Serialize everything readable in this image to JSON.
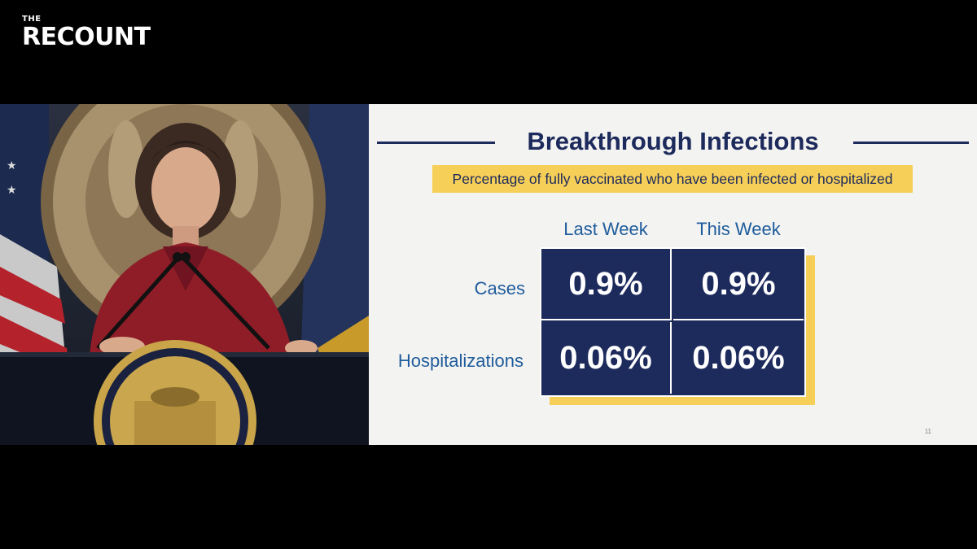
{
  "brand": {
    "the": "THE",
    "name": "RECOUNT"
  },
  "slide": {
    "title": "Breakthrough Infections",
    "subtitle": "Percentage of fully vaccinated who have been infected or hospitalized",
    "columns": [
      "Last Week",
      "This Week"
    ],
    "rows": [
      {
        "label": "Cases",
        "values": [
          "0.9%",
          "0.9%"
        ]
      },
      {
        "label": "Hospitalizations",
        "values": [
          "0.06%",
          "0.06%"
        ]
      }
    ],
    "page_number": "11"
  },
  "colors": {
    "navy": "#1d2a5c",
    "label_blue": "#1f5c9c",
    "highlight": "#f6cf58"
  }
}
